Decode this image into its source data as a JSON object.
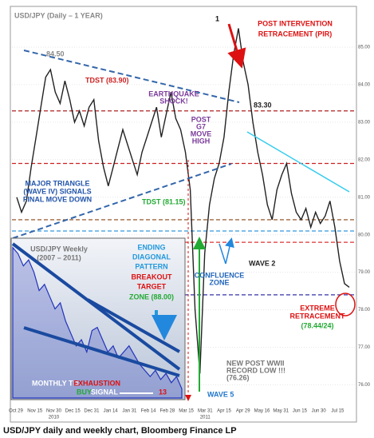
{
  "chart_data": [
    {
      "type": "line",
      "title": "USD/JPY (Daily – 1 YEAR)",
      "x_labels": [
        "Oct 29",
        "Nov 15",
        "Nov 30",
        "Dec 15",
        "Dec 31",
        "Jan 14",
        "Jan 31",
        "Feb 14",
        "Feb 28",
        "Mar 15",
        "Mar 31",
        "Apr 15",
        "Apr 29",
        "May 16",
        "May 31",
        "Jun 15",
        "Jun 30",
        "Jul 15"
      ],
      "year_labels": [
        {
          "at": 2,
          "label": "2010"
        },
        {
          "at": 10,
          "label": "2011"
        }
      ],
      "series": [
        {
          "name": "USD/JPY",
          "color": "#222222",
          "values": [
            81.0,
            80.6,
            80.9,
            81.8,
            82.6,
            83.4,
            84.2,
            84.4,
            83.8,
            83.5,
            84.1,
            83.6,
            83.0,
            83.3,
            82.9,
            83.4,
            83.6,
            82.5,
            81.8,
            81.3,
            81.8,
            82.3,
            82.8,
            82.4,
            82.0,
            81.6,
            82.2,
            82.6,
            83.0,
            83.4,
            82.6,
            83.2,
            83.8,
            83.1,
            82.8,
            82.2,
            81.2,
            78.0,
            76.3,
            79.5,
            80.8,
            81.5,
            81.9,
            82.6,
            83.8,
            84.8,
            85.5,
            84.6,
            84.0,
            83.0,
            82.2,
            81.6,
            80.8,
            80.4,
            81.2,
            81.6,
            81.9,
            81.1,
            80.6,
            80.4,
            80.7,
            80.2,
            80.6,
            80.3,
            80.5,
            80.9,
            80.2,
            79.3,
            78.7,
            78.6
          ]
        }
      ],
      "ylim": [
        75.5,
        86.0
      ],
      "yticks": [
        {
          "value": 76,
          "label": "76.00"
        },
        {
          "value": 77,
          "label": "77.00"
        },
        {
          "value": 78,
          "label": "78.00"
        },
        {
          "value": 79,
          "label": "79.00"
        },
        {
          "value": 80,
          "label": "80.00"
        },
        {
          "value": 81,
          "label": "81.00"
        },
        {
          "value": 82,
          "label": "82.00"
        },
        {
          "value": 83,
          "label": "83.00"
        },
        {
          "value": 84,
          "label": "84.00"
        },
        {
          "value": 85,
          "label": "85.00"
        }
      ],
      "levels": [
        {
          "value": 83.3,
          "color": "#b02020"
        },
        {
          "value": 81.9,
          "color": "#cc2222"
        },
        {
          "value": 80.4,
          "color": "#8b4513"
        },
        {
          "value": 80.1,
          "color": "#3399dd"
        },
        {
          "value": 79.8,
          "color": "#dd3333"
        },
        {
          "value": 78.4,
          "color": "#3333aa"
        }
      ],
      "grid": true
    },
    {
      "type": "area",
      "title_lines": [
        "USD/JPY Weekly",
        "(2007 – 2011)"
      ],
      "series": [
        {
          "name": "USD/JPY Weekly",
          "color": "#2233bb",
          "values": [
            124,
            122,
            118,
            120,
            116,
            110,
            112,
            108,
            104,
            106,
            100,
            96,
            92,
            94,
            90,
            97,
            98,
            94,
            90,
            92,
            88,
            90,
            92,
            89,
            86,
            84,
            82,
            84,
            81,
            83,
            80,
            82,
            78
          ]
        }
      ],
      "ylim": [
        75,
        126
      ]
    }
  ],
  "annotations": [
    {
      "lines": [
        "84.50"
      ],
      "color": "#888888"
    },
    {
      "lines": [
        "1"
      ],
      "color": "#111111"
    },
    {
      "lines": [
        "POST INTERVENTION",
        "RETRACEMENT (PIR)"
      ],
      "color": "#dd1111"
    },
    {
      "lines": [
        "TDST (83.90)"
      ],
      "color": "#cc2222"
    },
    {
      "lines": [
        "EARTHQUAKE",
        "SHOCK!"
      ],
      "color": "#7a3a9a"
    },
    {
      "lines": [
        "POST",
        "G7",
        "MOVE",
        "HIGH"
      ],
      "color": "#7a3a9a"
    },
    {
      "lines": [
        "83.30"
      ],
      "color": "#222222"
    },
    {
      "lines": [
        "MAJOR TRIANGLE",
        "(WAVE IV) SIGNALS",
        "FINAL MOVE DOWN"
      ],
      "color": "#2255aa"
    },
    {
      "lines": [
        "TDST (81.15)"
      ],
      "color": "#22aa33"
    },
    {
      "lines": [
        "WAVE 2"
      ],
      "color": "#222222"
    },
    {
      "lines": [
        "CONFLUENCE",
        "ZONE"
      ],
      "color": "#2266bb"
    },
    {
      "lines": [
        "ENDING",
        "DIAGONAL",
        "PATTERN"
      ],
      "color": "#2299dd"
    },
    {
      "lines": [
        "BREAKOUT",
        "TARGET"
      ],
      "color": "#dd1111"
    },
    {
      "lines": [
        "ZONE (88.00)"
      ],
      "color": "#22aa33"
    },
    {
      "lines": [
        "EXTREME",
        "RETRACEMENT"
      ],
      "color": "#dd1111"
    },
    {
      "lines": [
        "(78.44/24)"
      ],
      "color": "#22aa33"
    },
    {
      "lines": [
        "NEW POST WWII",
        "RECORD LOW !!!",
        "(76.26)"
      ],
      "color": "#777777"
    },
    {
      "lines": [
        "WAVE 5"
      ],
      "color": "#2277cc"
    },
    {
      "lines": [
        "MONTHLY TD"
      ],
      "color": "#ffffff"
    },
    {
      "lines": [
        "EXHAUSTION"
      ],
      "color": "#dd1111"
    },
    {
      "lines": [
        "BUY"
      ],
      "color": "#22aa33"
    },
    {
      "lines": [
        "SIGNAL"
      ],
      "color": "#ffffff"
    },
    {
      "lines": [
        "13"
      ],
      "color": "#dd1111"
    }
  ],
  "caption": "USD/JPY daily and weekly chart, Bloomberg Finance LP"
}
